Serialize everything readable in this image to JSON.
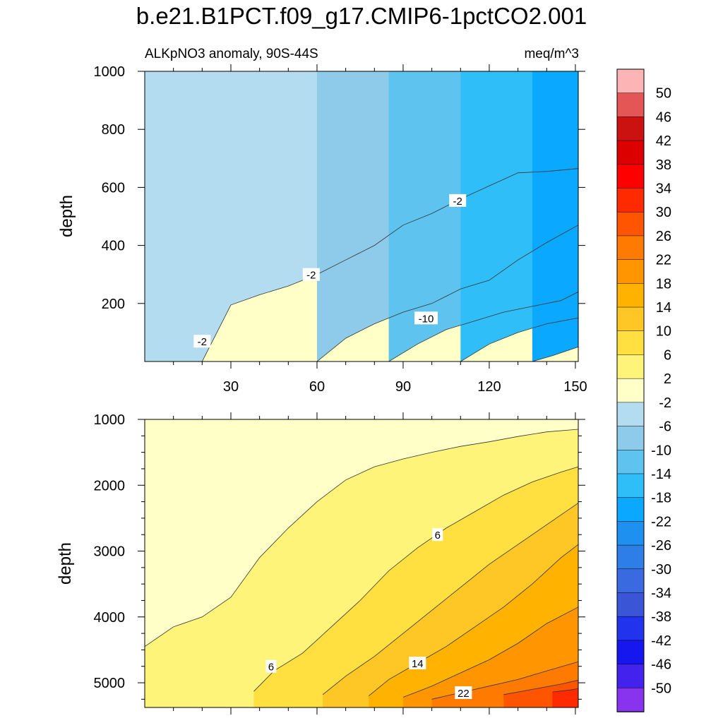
{
  "title": "b.e21.B1PCT.f09_g17.CMIP6-1pctCO2.001",
  "chart_data": [
    {
      "type": "contour",
      "panel": "upper",
      "subtitle_left": "ALKpNO3 anomaly, 90S-44S",
      "subtitle_right": "meq/m^3",
      "ylabel": "depth",
      "xlabel": "",
      "xlim": [
        0,
        151
      ],
      "ylim": [
        1000,
        0
      ],
      "x_ticks": [
        "30",
        "60",
        "90",
        "120",
        "150"
      ],
      "x_tick_values": [
        30,
        60,
        90,
        120,
        150
      ],
      "y_ticks": [
        "200",
        "400",
        "600",
        "800",
        "1000"
      ],
      "y_tick_values": [
        200,
        400,
        600,
        800,
        1000
      ],
      "contour_labels": [
        {
          "text": "-2",
          "x": 20,
          "depth": 70
        },
        {
          "text": "-2",
          "x": 58,
          "depth": 300
        },
        {
          "text": "-2",
          "x": 109,
          "depth": 555
        },
        {
          "text": "-10",
          "x": 98,
          "depth": 150
        }
      ],
      "contour_lines": [
        {
          "level": -2,
          "x": [
            0,
            11,
            15,
            20,
            30,
            40,
            50,
            60,
            70,
            80,
            90,
            100,
            110,
            120,
            130,
            140,
            151
          ],
          "depth": [
            0,
            0,
            0,
            0,
            195,
            230,
            260,
            300,
            350,
            400,
            470,
            510,
            560,
            605,
            650,
            655,
            665
          ]
        },
        {
          "level": -6,
          "x": [
            60,
            70,
            80,
            90,
            100,
            110,
            120,
            130,
            140,
            151
          ],
          "depth": [
            0,
            80,
            130,
            170,
            200,
            250,
            280,
            350,
            410,
            470
          ]
        },
        {
          "level": -10,
          "x": [
            85,
            95,
            105,
            115,
            125,
            135,
            145,
            151
          ],
          "depth": [
            0,
            60,
            110,
            140,
            170,
            190,
            210,
            240
          ]
        },
        {
          "level": -14,
          "x": [
            110,
            120,
            130,
            140,
            151
          ],
          "depth": [
            0,
            60,
            100,
            130,
            150
          ]
        },
        {
          "level": -18,
          "x": [
            135,
            142,
            151
          ],
          "depth": [
            0,
            20,
            50
          ]
        }
      ]
    },
    {
      "type": "contour",
      "panel": "lower",
      "ylabel": "depth",
      "xlabel": "",
      "xlim": [
        0,
        151
      ],
      "ylim": [
        1000,
        5375
      ],
      "x_tick_values": [
        30,
        60,
        90,
        120,
        150
      ],
      "y_ticks": [
        "1000",
        "2000",
        "3000",
        "4000",
        "5000"
      ],
      "y_tick_values": [
        1000,
        2000,
        3000,
        4000,
        5000
      ],
      "contour_labels": [
        {
          "text": "6",
          "x": 44,
          "depth": 4750
        },
        {
          "text": "6",
          "x": 102,
          "depth": 2750
        },
        {
          "text": "14",
          "x": 95,
          "depth": 4700
        },
        {
          "text": "22",
          "x": 111,
          "depth": 5150
        }
      ],
      "contour_lines": [
        {
          "level": 2,
          "x": [
            0,
            10,
            20,
            30,
            40,
            50,
            60,
            70,
            80,
            90,
            100,
            110,
            120,
            130,
            140,
            151
          ],
          "depth": [
            4450,
            4150,
            4000,
            3700,
            3100,
            2650,
            2250,
            1920,
            1720,
            1600,
            1500,
            1410,
            1340,
            1260,
            1190,
            1150
          ]
        },
        {
          "level": 6,
          "x": [
            38,
            45,
            55,
            65,
            75,
            85,
            95,
            105,
            115,
            125,
            135,
            145,
            151
          ],
          "depth": [
            5130,
            4820,
            4550,
            4150,
            3750,
            3300,
            2950,
            2650,
            2400,
            2150,
            1950,
            1800,
            1720
          ]
        },
        {
          "level": 10,
          "x": [
            62,
            70,
            80,
            90,
            100,
            110,
            120,
            130,
            140,
            151
          ],
          "depth": [
            5180,
            4900,
            4600,
            4250,
            3900,
            3550,
            3200,
            2900,
            2600,
            2270
          ]
        },
        {
          "level": 14,
          "x": [
            78,
            85,
            95,
            105,
            115,
            125,
            135,
            145,
            151
          ],
          "depth": [
            5200,
            4950,
            4700,
            4450,
            4150,
            3850,
            3500,
            3100,
            2900
          ]
        },
        {
          "level": 18,
          "x": [
            90,
            100,
            110,
            120,
            130,
            140,
            151
          ],
          "depth": [
            5220,
            5050,
            4850,
            4650,
            4400,
            4100,
            3850
          ]
        },
        {
          "level": 22,
          "x": [
            100,
            110,
            120,
            130,
            140,
            151
          ],
          "depth": [
            5250,
            5150,
            5050,
            4950,
            4820,
            4680
          ]
        },
        {
          "level": 26,
          "x": [
            125,
            135,
            145,
            151
          ],
          "depth": [
            5180,
            5100,
            5020,
            4960
          ]
        },
        {
          "level": 30,
          "x": [
            142,
            148,
            151
          ],
          "depth": [
            5140,
            5110,
            5090
          ]
        }
      ]
    }
  ],
  "colorbar": {
    "labels": [
      "50",
      "46",
      "42",
      "38",
      "34",
      "30",
      "26",
      "22",
      "18",
      "14",
      "10",
      "6",
      "2",
      "-2",
      "-6",
      "-10",
      "-14",
      "-18",
      "-22",
      "-26",
      "-30",
      "-34",
      "-38",
      "-42",
      "-46",
      "-50"
    ],
    "colors": [
      "#fdb4b4",
      "#e45555",
      "#cc1111",
      "#dd0000",
      "#ff0000",
      "#ff2a00",
      "#ff5500",
      "#ff7a00",
      "#ff9500",
      "#ffb300",
      "#ffc726",
      "#ffe040",
      "#fff47a",
      "#ffffc8",
      "#b4dcf0",
      "#8ecbea",
      "#5ec4ef",
      "#2fbef8",
      "#0aa8ff",
      "#1e90f0",
      "#2e7ee8",
      "#3a6ae0",
      "#3a56d6",
      "#2233ee",
      "#1616ee",
      "#4422ee",
      "#8833ee"
    ]
  },
  "fill_levels": {
    "upper": {
      "background": "#ffffc8"
    },
    "lower": {
      "background": "#ffffc8"
    }
  }
}
